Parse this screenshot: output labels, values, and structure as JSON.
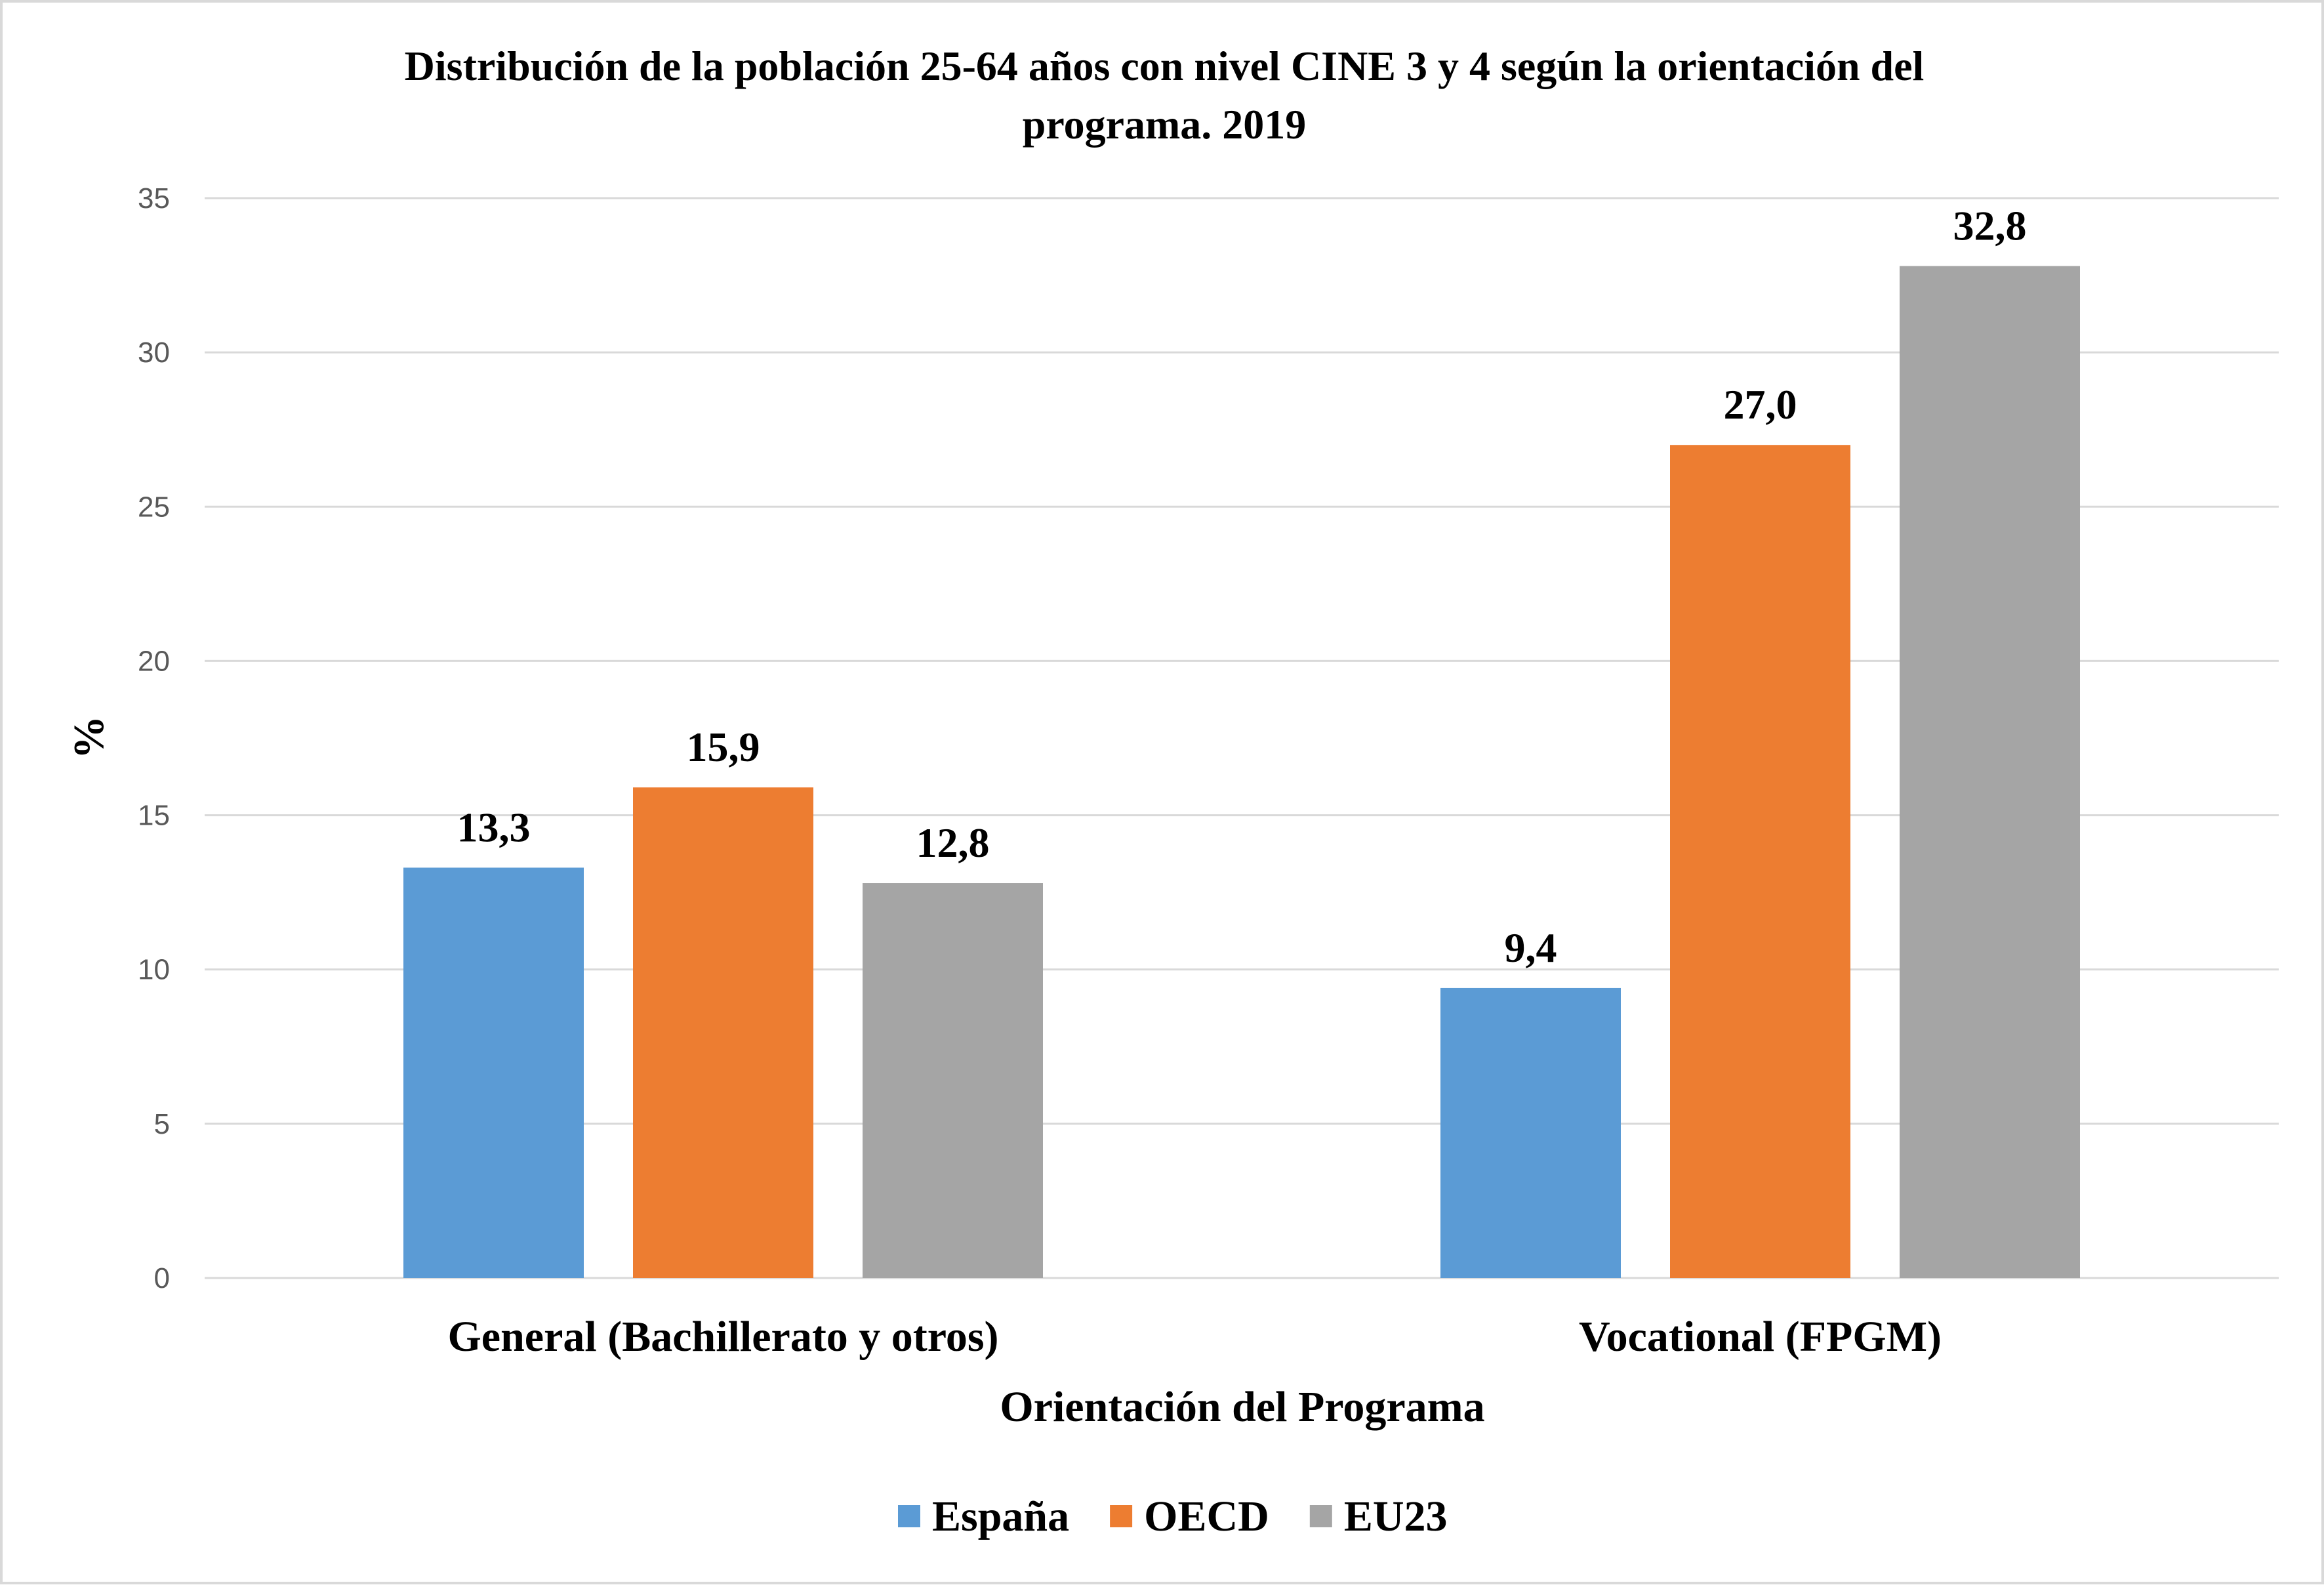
{
  "chart_data": {
    "type": "bar",
    "title_line1": "Distribución de la población 25-64 años con nivel CINE 3 y 4 según la orientación del",
    "title_line2": "programa. 2019",
    "xlabel": "Orientación del Programa",
    "ylabel": "%",
    "ylim": [
      0,
      35
    ],
    "yticks": [
      "0",
      "5",
      "10",
      "15",
      "20",
      "25",
      "30",
      "35"
    ],
    "categories": [
      "General (Bachillerato y otros)",
      "Vocational (FPGM)"
    ],
    "series": [
      {
        "name": "España",
        "color": "#5b9bd5",
        "values": [
          13.3,
          9.4
        ],
        "labels": [
          "13,3",
          "9,4"
        ]
      },
      {
        "name": "OECD",
        "color": "#ed7d31",
        "values": [
          15.9,
          27.0
        ],
        "labels": [
          "15,9",
          "27,0"
        ]
      },
      {
        "name": "EU23",
        "color": "#a5a5a5",
        "values": [
          12.8,
          32.8
        ],
        "labels": [
          "12,8",
          "32,8"
        ]
      }
    ],
    "grid": true,
    "legend_position": "bottom"
  }
}
